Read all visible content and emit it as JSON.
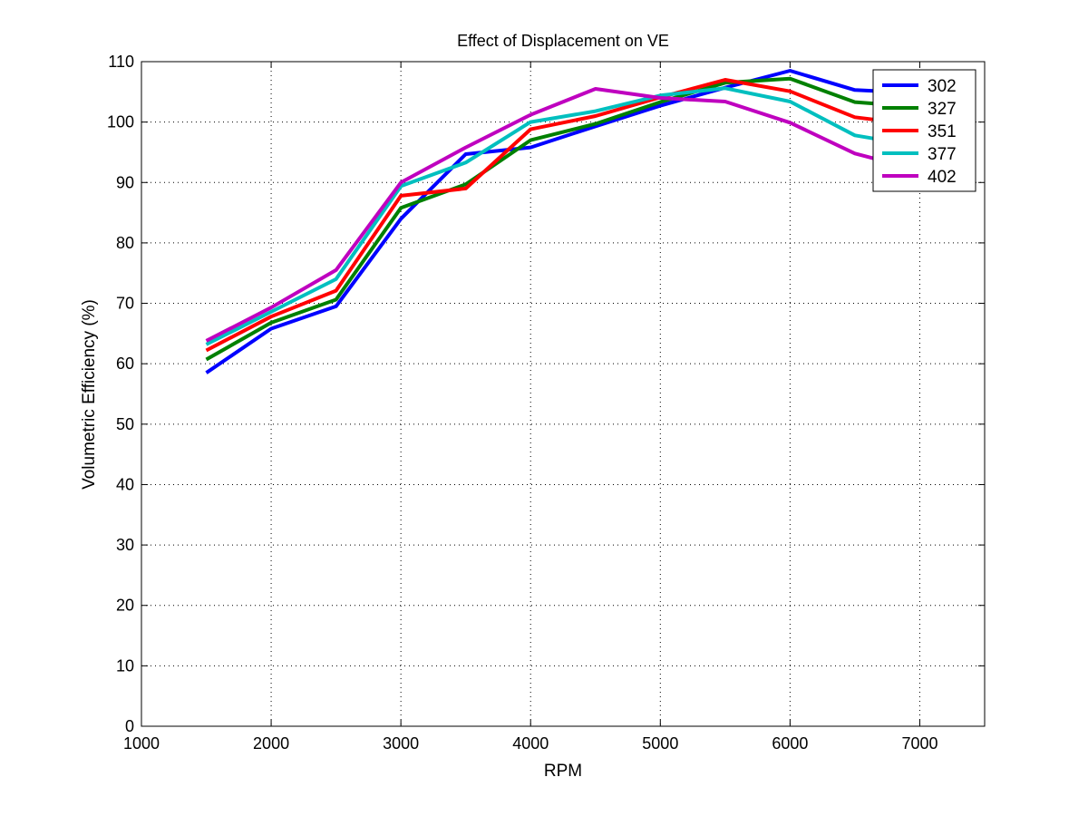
{
  "chart_data": {
    "type": "line",
    "title": "Effect of Displacement on VE",
    "xlabel": "RPM",
    "ylabel": "Volumetric Efficiency (%)",
    "xlim": [
      1000,
      7500
    ],
    "ylim": [
      0,
      110
    ],
    "xticks": [
      1000,
      2000,
      3000,
      4000,
      5000,
      6000,
      7000
    ],
    "yticks": [
      0,
      10,
      20,
      30,
      40,
      50,
      60,
      70,
      80,
      90,
      100,
      110
    ],
    "grid": true,
    "legend_position": "top-right",
    "x": [
      1500,
      2000,
      2500,
      3000,
      3500,
      4000,
      4500,
      5000,
      5500,
      6000,
      6500,
      7000
    ],
    "series": [
      {
        "name": "302",
        "color": "#0000ff",
        "values": [
          58.5,
          65.8,
          69.5,
          84.0,
          94.7,
          95.8,
          99.3,
          102.7,
          105.7,
          108.5,
          105.3,
          104.8
        ]
      },
      {
        "name": "327",
        "color": "#008000",
        "values": [
          60.7,
          66.8,
          70.6,
          85.8,
          89.7,
          97.0,
          99.7,
          103.3,
          106.5,
          107.2,
          103.3,
          102.5
        ]
      },
      {
        "name": "351",
        "color": "#ff0000",
        "values": [
          62.2,
          67.8,
          72.1,
          87.8,
          89.0,
          98.8,
          101.0,
          104.1,
          107.0,
          105.1,
          100.8,
          99.5
        ]
      },
      {
        "name": "377",
        "color": "#00bfbf",
        "values": [
          63.2,
          68.6,
          74.0,
          89.4,
          93.3,
          100.0,
          101.8,
          104.4,
          105.6,
          103.4,
          97.8,
          96.0
        ]
      },
      {
        "name": "402",
        "color": "#bf00bf",
        "values": [
          63.8,
          69.3,
          75.5,
          90.0,
          95.8,
          101.2,
          105.5,
          104.0,
          103.4,
          99.9,
          94.8,
          92.0
        ]
      }
    ]
  }
}
